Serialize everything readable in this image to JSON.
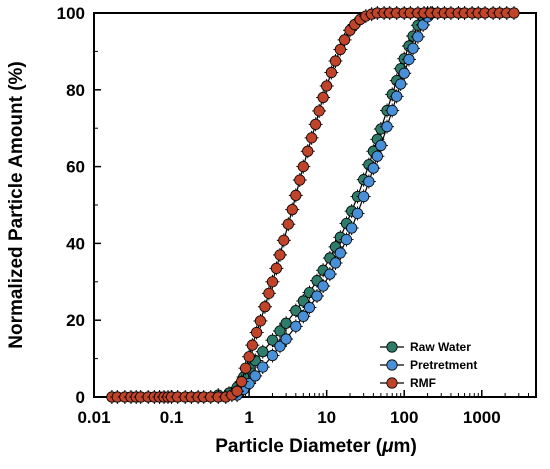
{
  "chart_data": {
    "type": "scatter",
    "xscale": "log",
    "xlabel_prefix": "Particle Diameter (",
    "xlabel_unit": "μ",
    "xlabel_suffix": "m)",
    "ylabel": "Normalized Particle Amount (%)",
    "xlim": [
      0.01,
      5000
    ],
    "ylim": [
      0,
      100
    ],
    "x_ticks": [
      0.01,
      0.1,
      1,
      10,
      100,
      1000
    ],
    "x_tick_labels": [
      "0.01",
      "0.1",
      "1",
      "10",
      "100",
      "1000"
    ],
    "y_ticks": [
      0,
      20,
      40,
      60,
      80,
      100
    ],
    "y_tick_labels": [
      "0",
      "20",
      "40",
      "60",
      "80",
      "100"
    ],
    "grid": false,
    "legend_position": "bottom-right",
    "series": [
      {
        "name": "Raw Water",
        "color": "#2e7d6b",
        "points": [
          [
            0.4,
            0.5
          ],
          [
            0.55,
            1.0
          ],
          [
            0.7,
            2.5
          ],
          [
            0.85,
            5.2
          ],
          [
            1.0,
            7.5
          ],
          [
            1.2,
            9.5
          ],
          [
            1.5,
            11.8
          ],
          [
            2.0,
            14.8
          ],
          [
            2.5,
            17.2
          ],
          [
            3.0,
            19.2
          ],
          [
            4.0,
            22.5
          ],
          [
            5.0,
            25.0
          ],
          [
            6.0,
            27.2
          ],
          [
            7.5,
            30.3
          ],
          [
            9.0,
            33.0
          ],
          [
            11.0,
            36.2
          ],
          [
            13.0,
            39.1
          ],
          [
            15.0,
            41.6
          ],
          [
            18.0,
            45.2
          ],
          [
            21.0,
            48.4
          ],
          [
            25.0,
            52.2
          ],
          [
            30.0,
            56.6
          ],
          [
            35.0,
            60.5
          ],
          [
            40.0,
            64.0
          ],
          [
            45.0,
            67.1
          ],
          [
            50.0,
            69.8
          ],
          [
            60.0,
            74.6
          ],
          [
            70.0,
            78.8
          ],
          [
            80.0,
            82.4
          ],
          [
            90.0,
            85.5
          ],
          [
            100.0,
            88.1
          ],
          [
            115.0,
            91.4
          ],
          [
            130.0,
            94.0
          ],
          [
            150.0,
            96.8
          ],
          [
            175.0,
            99.0
          ],
          [
            200.0,
            100.0
          ]
        ]
      },
      {
        "name": "Pretretment",
        "color": "#4a90d9",
        "points": [
          [
            0.7,
            0.5
          ],
          [
            0.85,
            2.0
          ],
          [
            1.0,
            3.5
          ],
          [
            1.2,
            5.5
          ],
          [
            1.5,
            7.8
          ],
          [
            2.0,
            10.8
          ],
          [
            2.5,
            13.2
          ],
          [
            3.0,
            15.1
          ],
          [
            4.0,
            18.4
          ],
          [
            5.0,
            21.0
          ],
          [
            6.0,
            23.3
          ],
          [
            7.5,
            26.3
          ],
          [
            9.0,
            28.9
          ],
          [
            11.0,
            32.0
          ],
          [
            13.0,
            34.9
          ],
          [
            15.0,
            37.5
          ],
          [
            18.0,
            41.0
          ],
          [
            21.0,
            44.0
          ],
          [
            25.0,
            47.8
          ],
          [
            30.0,
            52.2
          ],
          [
            35.0,
            56.1
          ],
          [
            40.0,
            59.6
          ],
          [
            45.0,
            62.7
          ],
          [
            50.0,
            65.5
          ],
          [
            60.0,
            70.4
          ],
          [
            70.0,
            74.6
          ],
          [
            80.0,
            78.3
          ],
          [
            90.0,
            81.5
          ],
          [
            100.0,
            84.3
          ],
          [
            115.0,
            87.9
          ],
          [
            130.0,
            90.8
          ],
          [
            150.0,
            93.8
          ],
          [
            175.0,
            96.9
          ],
          [
            200.0,
            99.0
          ],
          [
            230.0,
            100.0
          ]
        ]
      },
      {
        "name": "RMF",
        "color": "#c0442a",
        "points": [
          [
            0.017,
            0.0
          ],
          [
            0.02,
            0.0
          ],
          [
            0.025,
            0.0
          ],
          [
            0.03,
            0.0
          ],
          [
            0.035,
            0.0
          ],
          [
            0.04,
            0.0
          ],
          [
            0.05,
            0.0
          ],
          [
            0.06,
            0.0
          ],
          [
            0.07,
            0.0
          ],
          [
            0.08,
            0.0
          ],
          [
            0.09,
            0.0
          ],
          [
            0.1,
            0.0
          ],
          [
            0.12,
            0.0
          ],
          [
            0.15,
            0.0
          ],
          [
            0.18,
            0.0
          ],
          [
            0.22,
            0.0
          ],
          [
            0.26,
            0.0
          ],
          [
            0.32,
            0.0
          ],
          [
            0.4,
            0.0
          ],
          [
            0.5,
            0.0
          ],
          [
            0.6,
            0.5
          ],
          [
            0.7,
            1.5
          ],
          [
            0.8,
            4.0
          ],
          [
            0.9,
            7.5
          ],
          [
            1.0,
            10.5
          ],
          [
            1.1,
            13.5
          ],
          [
            1.25,
            16.8
          ],
          [
            1.4,
            19.8
          ],
          [
            1.6,
            23.5
          ],
          [
            1.8,
            27.0
          ],
          [
            2.0,
            30.0
          ],
          [
            2.25,
            33.5
          ],
          [
            2.5,
            37.0
          ],
          [
            2.8,
            40.8
          ],
          [
            3.2,
            45.0
          ],
          [
            3.6,
            48.8
          ],
          [
            4.0,
            52.5
          ],
          [
            4.5,
            56.5
          ],
          [
            5.0,
            60.0
          ],
          [
            5.7,
            64.0
          ],
          [
            6.4,
            67.5
          ],
          [
            7.2,
            71.0
          ],
          [
            8.0,
            74.5
          ],
          [
            9.0,
            78.0
          ],
          [
            10.0,
            81.0
          ],
          [
            11.5,
            84.5
          ],
          [
            13.0,
            87.5
          ],
          [
            15.0,
            90.5
          ],
          [
            17.0,
            93.0
          ],
          [
            20.0,
            95.5
          ],
          [
            23.0,
            97.0
          ],
          [
            27.0,
            98.3
          ],
          [
            32.0,
            99.2
          ],
          [
            38.0,
            99.7
          ],
          [
            45.0,
            100.0
          ],
          [
            55.0,
            100.0
          ],
          [
            65.0,
            100.0
          ],
          [
            80.0,
            100.0
          ],
          [
            100.0,
            100.0
          ],
          [
            120.0,
            100.0
          ],
          [
            150.0,
            100.0
          ],
          [
            180.0,
            100.0
          ],
          [
            220.0,
            100.0
          ],
          [
            270.0,
            100.0
          ],
          [
            330.0,
            100.0
          ],
          [
            400.0,
            100.0
          ],
          [
            500.0,
            100.0
          ],
          [
            600.0,
            100.0
          ],
          [
            750.0,
            100.0
          ],
          [
            900.0,
            100.0
          ],
          [
            1100.0,
            100.0
          ],
          [
            1400.0,
            100.0
          ],
          [
            1700.0,
            100.0
          ],
          [
            2100.0,
            100.0
          ],
          [
            2600.0,
            100.0
          ]
        ]
      }
    ]
  }
}
